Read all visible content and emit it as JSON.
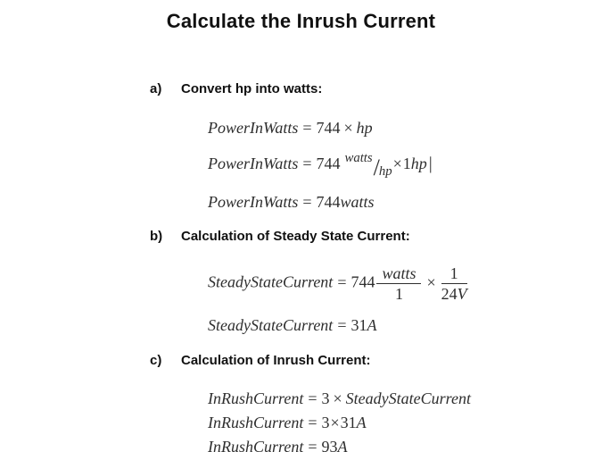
{
  "page": {
    "title": "Calculate the Inrush Current",
    "background_color": "#ffffff",
    "heading_color": "#111111",
    "formula_color": "#2e2e2e"
  },
  "sections": [
    {
      "label": "a)",
      "heading": "Convert hp into watts:",
      "formulas": [
        {
          "lhs": "PowerInWatts",
          "eq": "=",
          "coeff": "744",
          "op": "×",
          "unit": "hp"
        },
        {
          "lhs": "PowerInWatts",
          "eq": "=",
          "coeff": "744",
          "frac": {
            "numerator": "watts",
            "slash": "/",
            "denominator": "hp"
          },
          "op": "×",
          "factor": "1",
          "unit": "hp",
          "cursor": "|"
        },
        {
          "lhs": "PowerInWatts",
          "eq": "=",
          "coeff": "744",
          "unit": "watts"
        }
      ]
    },
    {
      "label": "b)",
      "heading": "Calculation of Steady State Current:",
      "formulas": [
        {
          "lhs": "SteadyStateCurrent",
          "eq": "=",
          "coeff": "744",
          "frac1": {
            "numerator": "watts",
            "denominator": "1"
          },
          "op": "×",
          "frac2": {
            "numerator": "1",
            "denominator_num": "24",
            "denominator_unit": "V"
          }
        },
        {
          "lhs": "SteadyStateCurrent",
          "eq": "=",
          "value": "31",
          "unit": "A"
        }
      ]
    },
    {
      "label": "c)",
      "heading": "Calculation of Inrush Current:",
      "formulas": [
        {
          "lhs": "InRushCurrent",
          "eq": "=",
          "coeff": "3",
          "op": "×",
          "term": "SteadyStateCurrent"
        },
        {
          "lhs": "InRushCurrent",
          "eq": "=",
          "coeff": "3",
          "op": "×",
          "value": "31",
          "unit": "A"
        },
        {
          "lhs": "InRushCurrent",
          "eq": "=",
          "value": "93",
          "unit": "A"
        }
      ]
    }
  ]
}
